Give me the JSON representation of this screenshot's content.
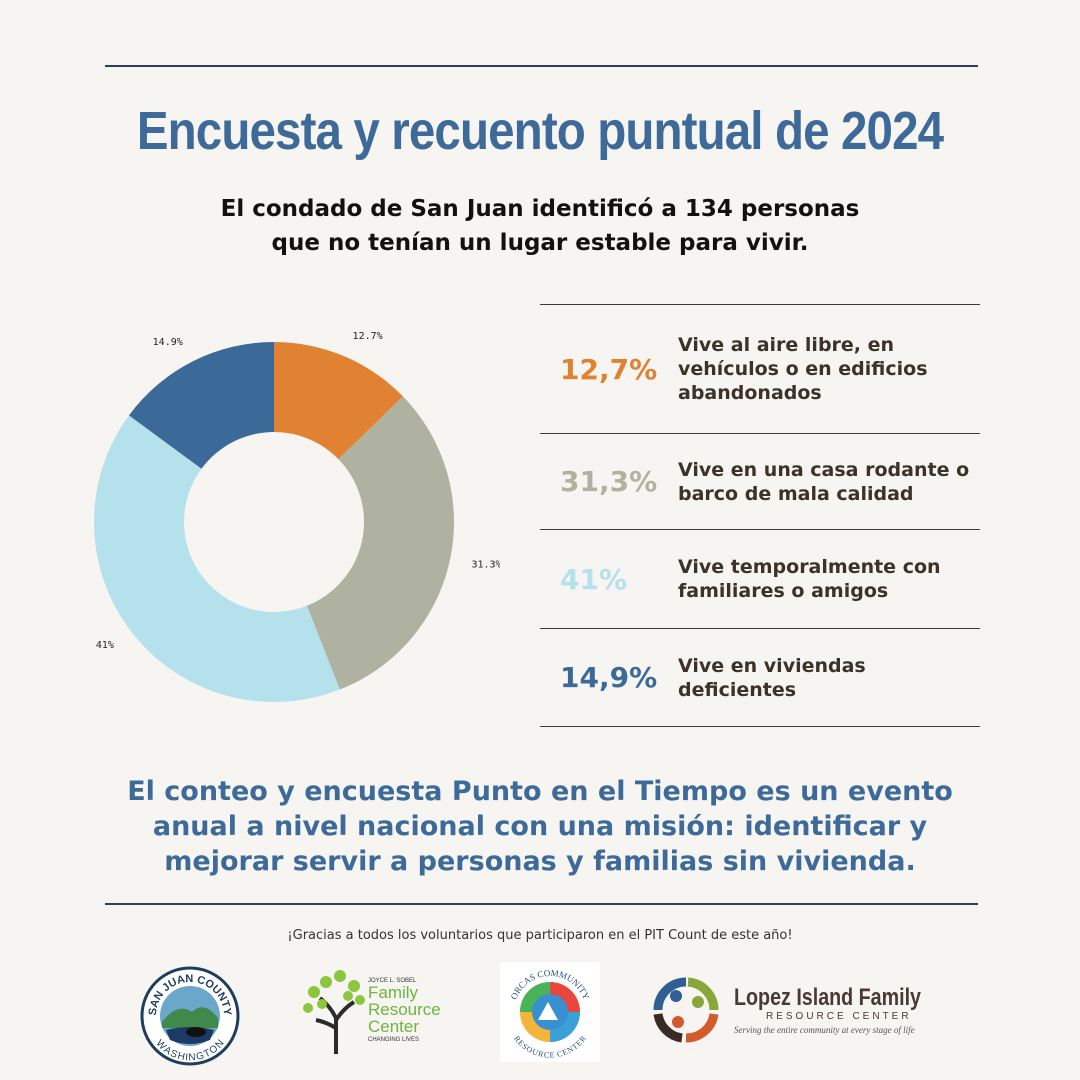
{
  "title": "Encuesta y recuento puntual de 2024",
  "subtitle_line1": "El condado de San Juan identificó a 134 personas",
  "subtitle_line2": "que no tenían un lugar estable para vivir.",
  "chart_data": {
    "type": "pie",
    "donut": true,
    "categories": [
      "Vive al aire libre, en vehículos o en edificios abandonados",
      "Vive en una casa rodante o barco de mala calidad",
      "Vive temporalmente con familiares o amigos",
      "Vive en viviendas deficientes"
    ],
    "values": [
      12.7,
      31.3,
      41,
      14.9
    ],
    "slice_labels": [
      "12.7%",
      "31.3%",
      "41%",
      "14.9%"
    ],
    "colors": [
      "#e08232",
      "#b0b2a1",
      "#b5e1ed",
      "#3c6a98"
    ]
  },
  "legend": [
    {
      "pct": "12,7%",
      "line1": "Vive al aire libre, en",
      "line2": "vehículos o en edificios",
      "line3": "abandonados",
      "color": "#e08232"
    },
    {
      "pct": "31,3%",
      "line1": "Vive en una casa rodante o",
      "line2": "barco de mala calidad",
      "line3": "",
      "color": "#b0b2a1"
    },
    {
      "pct": "41%",
      "line1": "Vive temporalmente con",
      "line2": "familiares o amigos",
      "line3": "",
      "color": "#b5e1ed"
    },
    {
      "pct": "14,9%",
      "line1": "Vive en viviendas",
      "line2": "deficientes",
      "line3": "",
      "color": "#3c6a98"
    }
  ],
  "mission_line1": "El conteo y encuesta Punto en el Tiempo es un evento",
  "mission_line2": "anual a nivel nacional con una misión: identificar y",
  "mission_line3": "mejorar servir a personas y familias sin vivienda.",
  "thanks": "¡Gracias a todos los voluntarios que participaron en el PIT Count de este año!",
  "logos": {
    "sjc_top": "SAN JUAN COUNTY",
    "sjc_bottom": "WASHINGTON",
    "frc_small": "JOYCE L. SOBEL",
    "frc_family": "Family",
    "frc_resource": "Resource",
    "frc_center": "Center",
    "frc_tagline": "CHANGING LIVES",
    "ocrc_top": "ORCAS COMMUNITY",
    "ocrc_bottom": "RESOURCE CENTER",
    "lopez_name": "Lopez Island Family",
    "lopez_sub": "RESOURCE CENTER",
    "lopez_tagline": "Serving the entire community at every stage of life"
  }
}
